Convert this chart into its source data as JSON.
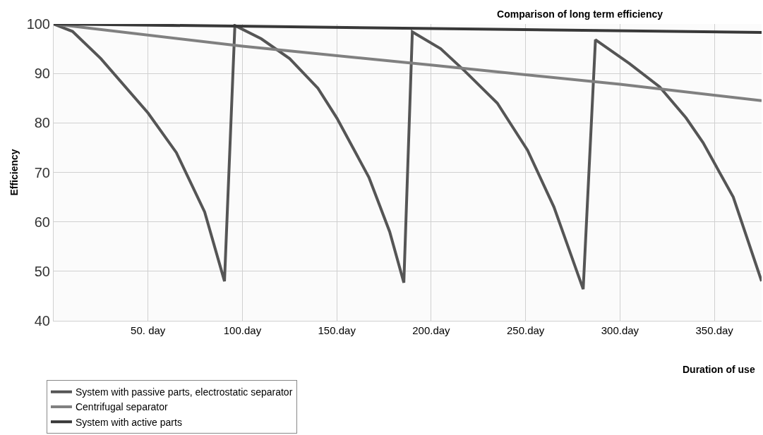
{
  "chart_data": {
    "type": "line",
    "title": "Comparison of long term efficiency",
    "xlabel": "Duration of use",
    "ylabel": "Efficiency",
    "xlim": [
      0,
      375
    ],
    "ylim": [
      40,
      100
    ],
    "xticks": [
      {
        "value": 50,
        "label": "50. day"
      },
      {
        "value": 100,
        "label": "100.day"
      },
      {
        "value": 150,
        "label": "150.day"
      },
      {
        "value": 200,
        "label": "200.day"
      },
      {
        "value": 250,
        "label": "250.day"
      },
      {
        "value": 300,
        "label": "300.day"
      },
      {
        "value": 350,
        "label": "350.day"
      }
    ],
    "yticks": [
      40,
      50,
      60,
      70,
      80,
      90,
      100
    ],
    "grid": true,
    "legend": "bottom left",
    "line_style": "solid",
    "marker": "none",
    "series": [
      {
        "name": "System with passive parts, electrostatic separator",
        "color": "#555555",
        "x": [
          0,
          10,
          25,
          50,
          65,
          80,
          90.5,
          96,
          110,
          125,
          140,
          150,
          167,
          178,
          185.5,
          190,
          205,
          218,
          235,
          251,
          265,
          280.5,
          287,
          305,
          321,
          335,
          344,
          360,
          375
        ],
        "values": [
          100,
          98.5,
          93,
          82,
          74,
          62,
          48,
          99.7,
          97,
          93,
          87,
          81,
          69,
          58,
          47.7,
          98.4,
          95,
          90.4,
          84,
          74.5,
          63,
          46.4,
          96.8,
          92,
          87.3,
          81,
          76,
          65,
          48
        ]
      },
      {
        "name": "Centrifugal separator",
        "color": "#808080",
        "x": [
          0,
          100,
          200,
          300,
          375
        ],
        "values": [
          100,
          95.5,
          91.7,
          87.8,
          84.5
        ]
      },
      {
        "name": "System with active parts",
        "color": "#383838",
        "x": [
          0,
          375
        ],
        "values": [
          100,
          98.3
        ]
      }
    ]
  }
}
